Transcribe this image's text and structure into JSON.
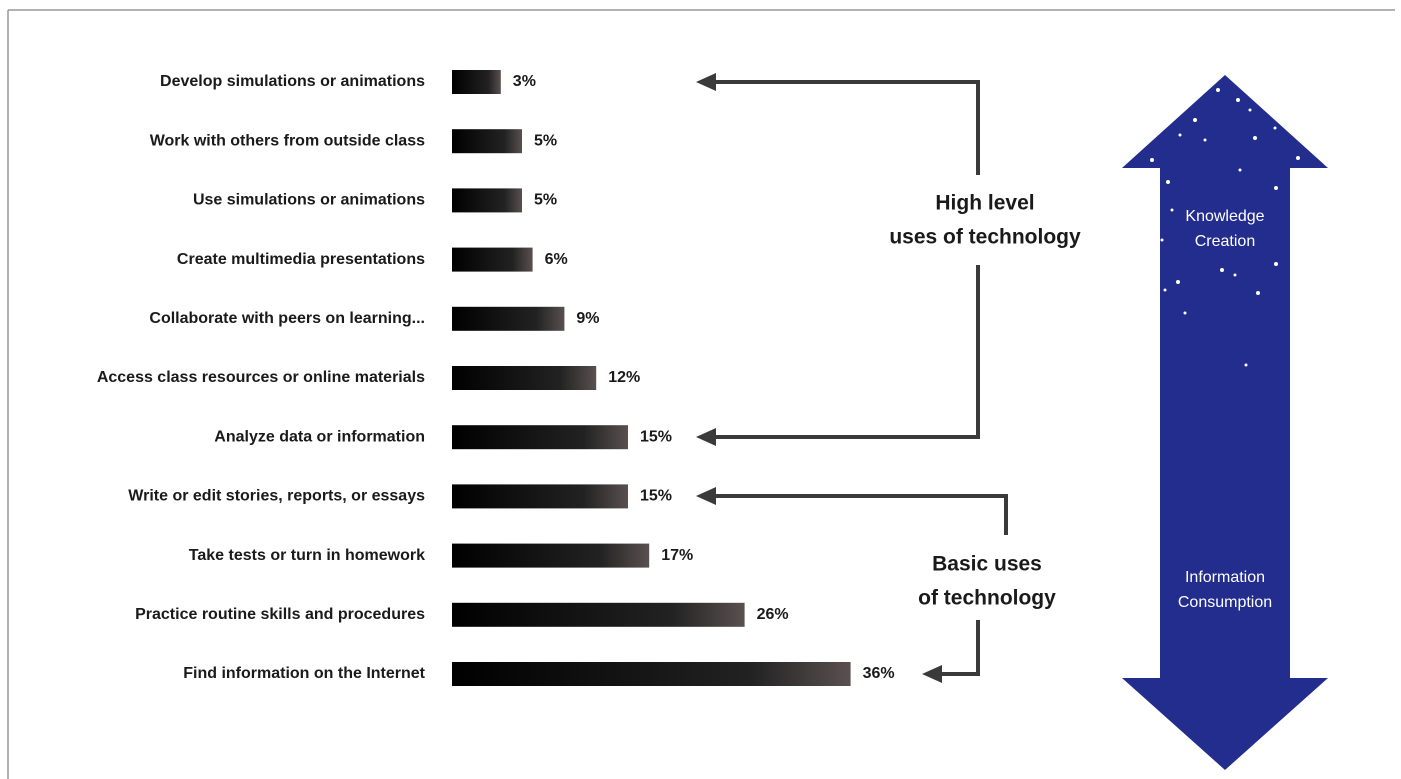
{
  "chart_data": {
    "type": "bar",
    "orientation": "horizontal",
    "categories": [
      "Develop simulations or animations",
      "Work with others from outside class",
      "Use simulations or animations",
      "Create multimedia presentations",
      "Collaborate with peers on learning...",
      "Access class resources or online materials",
      "Analyze data or information",
      "Write or edit stories, reports, or essays",
      "Take tests or turn in homework",
      "Practice routine skills and procedures",
      "Find information on the Internet"
    ],
    "values": [
      3,
      5,
      5,
      6,
      9,
      12,
      15,
      15,
      17,
      26,
      36
    ],
    "value_labels": [
      "3%",
      "5%",
      "5%",
      "6%",
      "9%",
      "12%",
      "15%",
      "15%",
      "17%",
      "26%",
      "36%"
    ],
    "color": "#000000",
    "annotations": [
      [
        "High level",
        "uses of technology"
      ],
      [
        "Basic uses",
        "of technology"
      ]
    ],
    "arrow_labels": [
      [
        "Knowledge",
        "Creation"
      ],
      [
        "Information",
        "Consumption"
      ]
    ]
  }
}
